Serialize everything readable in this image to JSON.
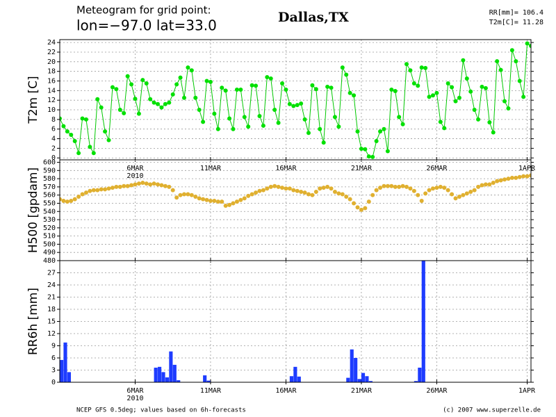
{
  "header": {
    "line1": "Meteogram for grid point:",
    "line2": "lon=−97.0 lat=33.0",
    "location": "Dallas,TX",
    "stats": [
      "RR[mm]= 106.4",
      "T2m[C]= 11.28"
    ]
  },
  "footer": {
    "left": "NCEP GFS 0.5deg; values based on 6h-forecasts",
    "right": "(c) 2007 www.superzelle.de"
  },
  "chart_data": [
    {
      "type": "line",
      "ylabel": "T2m [C]",
      "color": "#00c800",
      "marker_color": "#00e000",
      "grid": true,
      "year": "2010",
      "xlim": [
        1,
        32.25
      ],
      "ylim": [
        -0.4,
        24.6
      ],
      "xticks": [
        {
          "value": 6,
          "label": "6MAR"
        },
        {
          "value": 11,
          "label": "11MAR"
        },
        {
          "value": 16,
          "label": "16MAR"
        },
        {
          "value": 21,
          "label": "21MAR"
        },
        {
          "value": 26,
          "label": "26MAR"
        },
        {
          "value": 32,
          "label": "1APR"
        }
      ],
      "yticks": [
        0,
        2,
        4,
        6,
        8,
        10,
        12,
        14,
        16,
        18,
        20,
        22,
        24
      ],
      "x": [
        1,
        1.25,
        1.5,
        1.75,
        2,
        2.25,
        2.5,
        2.75,
        3,
        3.25,
        3.5,
        3.75,
        4,
        4.25,
        4.5,
        4.75,
        5,
        5.25,
        5.5,
        5.75,
        6,
        6.25,
        6.5,
        6.75,
        7,
        7.25,
        7.5,
        7.75,
        8,
        8.25,
        8.5,
        8.75,
        9,
        9.25,
        9.5,
        9.75,
        10,
        10.25,
        10.5,
        10.75,
        11,
        11.25,
        11.5,
        11.75,
        12,
        12.25,
        12.5,
        12.75,
        13,
        13.25,
        13.5,
        13.75,
        14,
        14.25,
        14.5,
        14.75,
        15,
        15.25,
        15.5,
        15.75,
        16,
        16.25,
        16.5,
        16.75,
        17,
        17.25,
        17.5,
        17.75,
        18,
        18.25,
        18.5,
        18.75,
        19,
        19.25,
        19.5,
        19.75,
        20,
        20.25,
        20.5,
        20.75,
        21,
        21.25,
        21.5,
        21.75,
        22,
        22.25,
        22.5,
        22.75,
        23,
        23.25,
        23.5,
        23.75,
        24,
        24.25,
        24.5,
        24.75,
        25,
        25.25,
        25.5,
        25.75,
        26,
        26.25,
        26.5,
        26.75,
        27,
        27.25,
        27.5,
        27.75,
        28,
        28.25,
        28.5,
        28.75,
        29,
        29.25,
        29.5,
        29.75,
        30,
        30.25,
        30.5,
        30.75,
        31,
        31.25,
        31.5,
        31.75,
        32,
        32.25
      ],
      "values": [
        8.2,
        6.6,
        5.5,
        4.8,
        3.5,
        1.0,
        8.2,
        8.0,
        2.3,
        1.0,
        12.2,
        10.5,
        5.5,
        3.7,
        14.7,
        14.3,
        10,
        9.3,
        17,
        15.3,
        12.3,
        9.2,
        16.2,
        15.5,
        12.2,
        11.5,
        11.2,
        10.5,
        11.2,
        11.5,
        13.2,
        15.3,
        16.7,
        12.5,
        18.8,
        18.2,
        12.5,
        10,
        7.5,
        16,
        15.8,
        9.2,
        6,
        14.6,
        14,
        8.2,
        6,
        14.2,
        14.2,
        8.5,
        6.5,
        15.1,
        15.0,
        8.7,
        6.7,
        16.8,
        16.5,
        10,
        7.3,
        15.5,
        14.2,
        11.2,
        10.8,
        11,
        11.3,
        8,
        5.2,
        15.1,
        14.3,
        6,
        3.2,
        14.8,
        14.6,
        8.5,
        6.5,
        18.8,
        17.3,
        13.5,
        13,
        5.5,
        1.9,
        1.8,
        0.3,
        0.2,
        3.5,
        5.5,
        6,
        1.4,
        14.2,
        13.9,
        8.5,
        7,
        19.5,
        18.2,
        15.5,
        15,
        18.8,
        18.7,
        12.7,
        13,
        13.5,
        7.5,
        6.2,
        15.5,
        14.7,
        11.8,
        12.5,
        20.3,
        16.5,
        13.8,
        10,
        8,
        14.8,
        14.5,
        7.4,
        5.3,
        20.1,
        18.3,
        11.8,
        10.3,
        22.4,
        20.1,
        16,
        12.7,
        23.8,
        23.3
      ]
    },
    {
      "type": "scatter",
      "ylabel": "H500 [gpdam]",
      "color": "#e0b030",
      "grid": true,
      "xlim": [
        1,
        32.25
      ],
      "ylim": [
        480,
        603
      ],
      "xticks": [
        6,
        11,
        16,
        21,
        26,
        32
      ],
      "yticks": [
        480,
        490,
        500,
        510,
        520,
        530,
        540,
        550,
        560,
        570,
        580,
        590,
        600
      ],
      "x": [
        1,
        1.25,
        1.5,
        1.75,
        2,
        2.25,
        2.5,
        2.75,
        3,
        3.25,
        3.5,
        3.75,
        4,
        4.25,
        4.5,
        4.75,
        5,
        5.25,
        5.5,
        5.75,
        6,
        6.25,
        6.5,
        6.75,
        7,
        7.25,
        7.5,
        7.75,
        8,
        8.25,
        8.5,
        8.75,
        9,
        9.25,
        9.5,
        9.75,
        10,
        10.25,
        10.5,
        10.75,
        11,
        11.25,
        11.5,
        11.75,
        12,
        12.25,
        12.5,
        12.75,
        13,
        13.25,
        13.5,
        13.75,
        14,
        14.25,
        14.5,
        14.75,
        15,
        15.25,
        15.5,
        15.75,
        16,
        16.25,
        16.5,
        16.75,
        17,
        17.25,
        17.5,
        17.75,
        18,
        18.25,
        18.5,
        18.75,
        19,
        19.25,
        19.5,
        19.75,
        20,
        20.25,
        20.5,
        20.75,
        21,
        21.25,
        21.5,
        21.75,
        22,
        22.25,
        22.5,
        22.75,
        23,
        23.25,
        23.5,
        23.75,
        24,
        24.25,
        24.5,
        24.75,
        25,
        25.25,
        25.5,
        25.75,
        26,
        26.25,
        26.5,
        26.75,
        27,
        27.25,
        27.5,
        27.75,
        28,
        28.25,
        28.5,
        28.75,
        29,
        29.25,
        29.5,
        29.75,
        30,
        30.25,
        30.5,
        30.75,
        31,
        31.25,
        31.5,
        31.75,
        32,
        32.25
      ],
      "values": [
        555,
        553,
        552,
        553,
        555,
        558,
        561,
        563,
        565,
        566,
        566,
        567,
        567,
        568,
        569,
        570,
        570,
        571,
        571,
        572,
        573,
        574,
        575,
        574,
        573,
        574,
        573,
        572,
        571,
        570,
        566,
        557,
        560,
        561,
        561,
        560,
        558,
        556,
        555,
        554,
        553,
        553,
        552,
        552,
        547,
        548,
        550,
        552,
        554,
        556,
        559,
        561,
        563,
        565,
        566,
        568,
        570,
        571,
        570,
        569,
        568,
        568,
        566,
        565,
        564,
        563,
        561,
        560,
        564,
        568,
        569,
        570,
        568,
        564,
        562,
        561,
        558,
        555,
        550,
        545,
        542,
        544,
        552,
        560,
        566,
        569,
        571,
        571,
        571,
        570,
        570,
        571,
        570,
        568,
        565,
        560,
        553,
        562,
        566,
        568,
        569,
        570,
        569,
        566,
        561,
        556,
        558,
        560,
        562,
        564,
        566,
        570,
        572,
        573,
        573,
        575,
        577,
        578,
        579,
        580,
        581,
        581,
        582,
        583,
        583,
        584
      ]
    },
    {
      "type": "bar",
      "ylabel": "RR6h [mm]",
      "color": "#1e3cff",
      "grid": true,
      "year": "2010",
      "xlim": [
        1,
        32.25
      ],
      "ylim": [
        0,
        30
      ],
      "xticks": [
        {
          "value": 6,
          "label": "6MAR"
        },
        {
          "value": 11,
          "label": "11MAR"
        },
        {
          "value": 16,
          "label": "16MAR"
        },
        {
          "value": 21,
          "label": "21MAR"
        },
        {
          "value": 26,
          "label": "26MAR"
        },
        {
          "value": 32,
          "label": "1APR"
        }
      ],
      "yticks": [
        0,
        3,
        6,
        9,
        12,
        15,
        18,
        21,
        24,
        27
      ],
      "x": [
        1,
        1.25,
        1.5,
        7.25,
        7.5,
        7.75,
        8,
        8.25,
        8.5,
        8.75,
        10.5,
        10.75,
        16.25,
        16.5,
        16.75,
        20,
        20.25,
        20.5,
        20.75,
        21,
        21.25,
        21.5,
        24.5,
        24.75,
        25
      ],
      "values": [
        5.5,
        9.8,
        2.5,
        3.6,
        3.8,
        2.5,
        1.2,
        7.6,
        4.3,
        0.5,
        1.7,
        0.4,
        1.5,
        3.8,
        1.4,
        1.1,
        8.1,
        6.0,
        0.8,
        2.3,
        1.5,
        0.3,
        0.3,
        3.6,
        30
      ]
    }
  ]
}
